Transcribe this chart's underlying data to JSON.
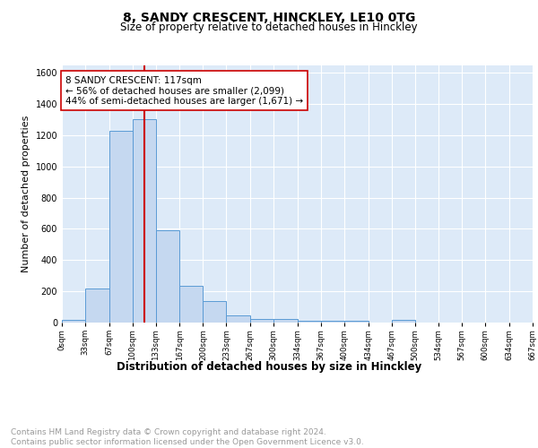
{
  "title1": "8, SANDY CRESCENT, HINCKLEY, LE10 0TG",
  "title2": "Size of property relative to detached houses in Hinckley",
  "xlabel": "Distribution of detached houses by size in Hinckley",
  "ylabel": "Number of detached properties",
  "bar_edges": [
    0,
    33,
    67,
    100,
    133,
    167,
    200,
    233,
    267,
    300,
    334,
    367,
    400,
    434,
    467,
    500,
    534,
    567,
    600,
    634,
    667
  ],
  "bar_heights": [
    15,
    220,
    1230,
    1300,
    590,
    235,
    135,
    48,
    25,
    22,
    10,
    10,
    10,
    0,
    18,
    0,
    0,
    0,
    0,
    0
  ],
  "bar_color": "#c5d8f0",
  "bar_edge_color": "#5b9bd5",
  "property_size": 117,
  "vline_color": "#cc0000",
  "annotation_text": "8 SANDY CRESCENT: 117sqm\n← 56% of detached houses are smaller (2,099)\n44% of semi-detached houses are larger (1,671) →",
  "annotation_box_color": "white",
  "annotation_box_edge": "#cc0000",
  "ylim": [
    0,
    1650
  ],
  "yticks": [
    0,
    200,
    400,
    600,
    800,
    1000,
    1200,
    1400,
    1600
  ],
  "xtick_labels": [
    "0sqm",
    "33sqm",
    "67sqm",
    "100sqm",
    "133sqm",
    "167sqm",
    "200sqm",
    "233sqm",
    "267sqm",
    "300sqm",
    "334sqm",
    "367sqm",
    "400sqm",
    "434sqm",
    "467sqm",
    "500sqm",
    "534sqm",
    "567sqm",
    "600sqm",
    "634sqm",
    "667sqm"
  ],
  "footer_text": "Contains HM Land Registry data © Crown copyright and database right 2024.\nContains public sector information licensed under the Open Government Licence v3.0.",
  "bg_color": "#ddeaf8",
  "fig_bg_color": "#ffffff",
  "grid_color": "#ffffff",
  "title1_fontsize": 10,
  "title2_fontsize": 8.5,
  "xlabel_fontsize": 8.5,
  "ylabel_fontsize": 8,
  "footer_fontsize": 6.5,
  "annotation_fontsize": 7.5
}
